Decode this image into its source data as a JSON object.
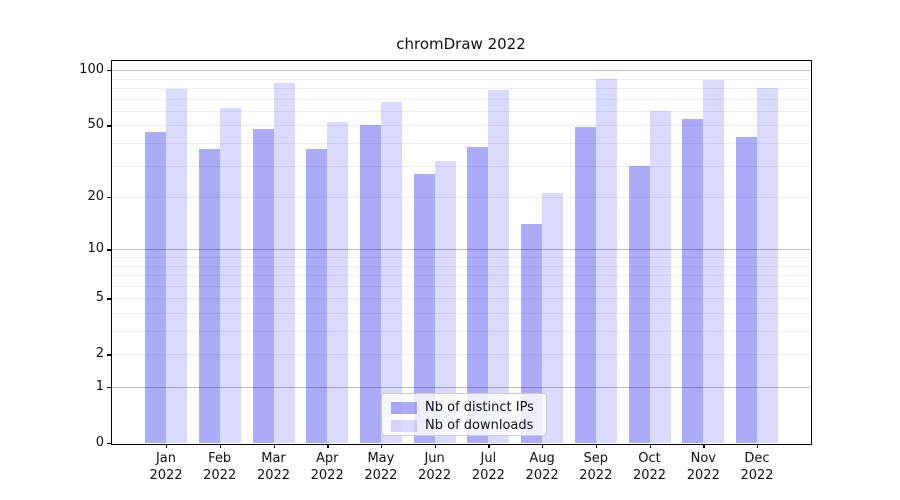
{
  "title": "chromDraw 2022",
  "chart_data": {
    "type": "bar",
    "title": "chromDraw 2022",
    "categories": [
      "Jan 2022",
      "Feb 2022",
      "Mar 2022",
      "Apr 2022",
      "May 2022",
      "Jun 2022",
      "Jul 2022",
      "Aug 2022",
      "Sep 2022",
      "Oct 2022",
      "Nov 2022",
      "Dec 2022"
    ],
    "series": [
      {
        "name": "Nb of distinct IPs",
        "color": "#ababf8",
        "css_color": "rgba(10,10,235,0.34)",
        "values": [
          46,
          37,
          48,
          37,
          50,
          27,
          38,
          14,
          49,
          30,
          54,
          43
        ]
      },
      {
        "name": "Nb of downloads",
        "color": "#dadaf9",
        "css_color": "rgba(10,10,235,0.15)",
        "values": [
          79,
          62,
          85,
          52,
          67,
          32,
          78,
          21,
          90,
          60,
          88,
          80
        ]
      }
    ],
    "xlabel": "",
    "ylabel": "",
    "yscale": "log1p",
    "yticks": [
      100,
      50,
      20,
      10,
      5,
      2,
      1,
      0
    ],
    "minor_grid_values": [
      2,
      3,
      4,
      5,
      6,
      7,
      8,
      9,
      20,
      30,
      40,
      50,
      60,
      70,
      80,
      90
    ],
    "major_grid_values": [
      1,
      10,
      100
    ],
    "ylim": [
      0,
      112
    ],
    "grid": "on",
    "legend_position": "lower center",
    "grid_minor_color": "#ededed",
    "grid_major_color": "#bdbdbd"
  }
}
